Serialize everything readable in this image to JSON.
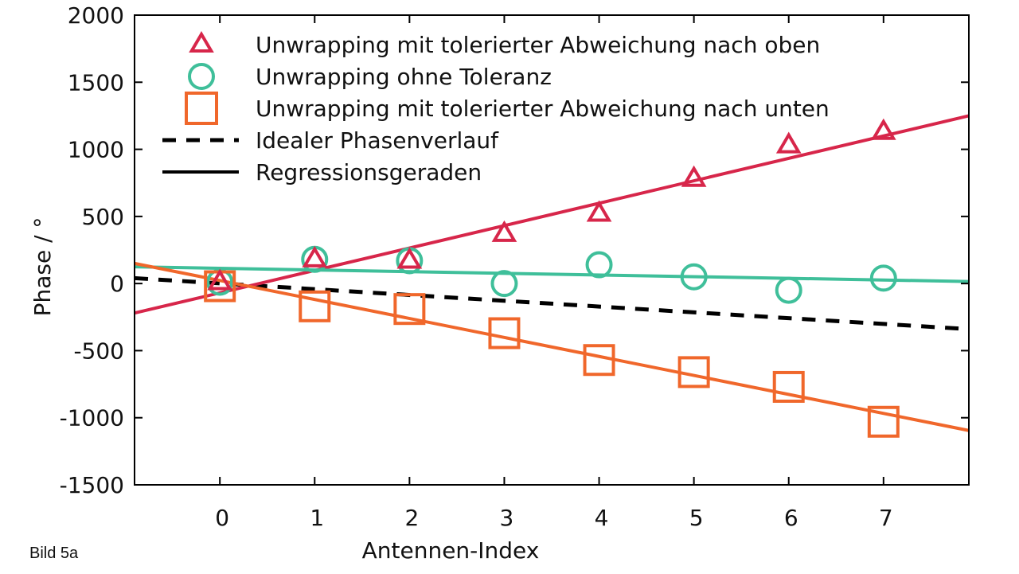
{
  "caption": "Bild 5a",
  "colors": {
    "up": "#d7264a",
    "none": "#3fbf9a",
    "down": "#f0672b",
    "ideal": "#000000",
    "axis": "#000000"
  },
  "chart_data": {
    "type": "scatter",
    "title": "",
    "xlabel": "Antennen-Index",
    "ylabel": "Phase / °",
    "xlim": [
      -0.9,
      7.9
    ],
    "ylim": [
      -1500,
      2000
    ],
    "xticks": [
      0,
      1,
      2,
      3,
      4,
      5,
      6,
      7
    ],
    "yticks": [
      -1500,
      -1000,
      -500,
      0,
      500,
      1000,
      1500,
      2000
    ],
    "series": [
      {
        "key": "up",
        "name": "Unwrapping mit tolerierter Abweichung nach oben",
        "marker": "triangle",
        "x": [
          0,
          1,
          2,
          3,
          4,
          5,
          6,
          7
        ],
        "y": [
          10,
          180,
          170,
          370,
          520,
          780,
          1030,
          1130
        ],
        "fit": {
          "x0": -0.9,
          "y0": -220,
          "x1": 7.9,
          "y1": 1250
        }
      },
      {
        "key": "none",
        "name": "Unwrapping ohne Toleranz",
        "marker": "circle",
        "x": [
          0,
          1,
          2,
          3,
          4,
          5,
          6,
          7
        ],
        "y": [
          10,
          180,
          170,
          0,
          140,
          50,
          -50,
          40
        ],
        "fit": {
          "x0": -0.9,
          "y0": 125,
          "x1": 7.9,
          "y1": 15
        }
      },
      {
        "key": "down",
        "name": "Unwrapping mit tolerierter Abweichung nach unten",
        "marker": "square",
        "x": [
          0,
          1,
          2,
          3,
          4,
          5,
          6,
          7
        ],
        "y": [
          -20,
          -170,
          -190,
          -370,
          -570,
          -660,
          -770,
          -1030
        ],
        "fit": {
          "x0": -0.9,
          "y0": 150,
          "x1": 7.9,
          "y1": -1095
        }
      }
    ],
    "ideal_line": {
      "name": "Idealer Phasenverlauf",
      "x0": -0.9,
      "y0": 40,
      "x1": 7.9,
      "y1": -340
    },
    "regression_legend": "Regressionsgeraden",
    "legend": [
      {
        "key": "up",
        "type": "triangle",
        "label": "Unwrapping mit tolerierter Abweichung nach oben"
      },
      {
        "key": "none",
        "type": "circle",
        "label": "Unwrapping ohne Toleranz"
      },
      {
        "key": "down",
        "type": "square",
        "label": "Unwrapping mit tolerierter Abweichung nach unten"
      },
      {
        "key": "ideal",
        "type": "dashed",
        "label": "Idealer Phasenverlauf"
      },
      {
        "key": "ideal",
        "type": "solid",
        "label": "Regressionsgeraden"
      }
    ],
    "legend_position": "top-left"
  }
}
